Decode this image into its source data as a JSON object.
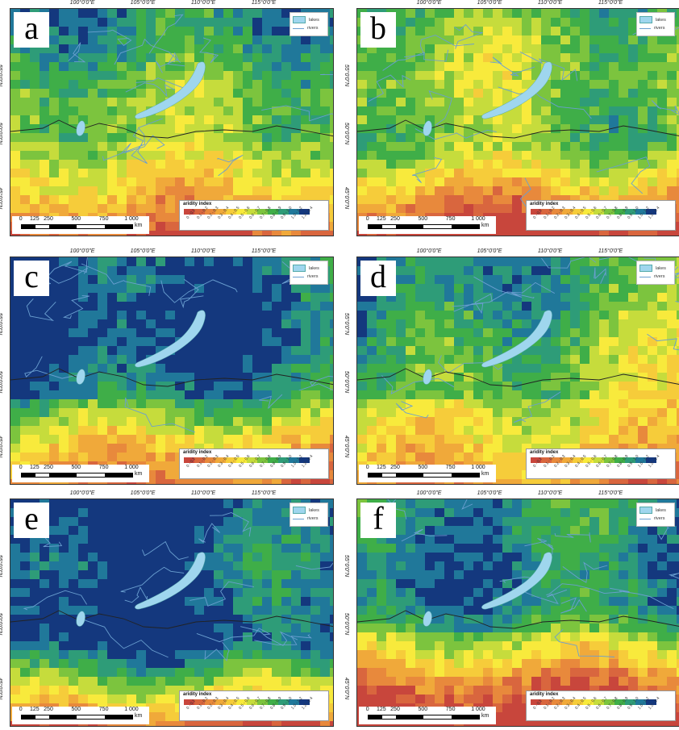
{
  "panels": [
    {
      "letter": "a",
      "legend_max": "1.2 - 1.4"
    },
    {
      "letter": "b",
      "legend_max": "1.2 - 1.4"
    },
    {
      "letter": "c",
      "legend_max": "1.2 - 1.4"
    },
    {
      "letter": "d",
      "legend_max": "1.2 - 1.4"
    },
    {
      "letter": "e",
      "legend_max": "1.2 - 1.4"
    },
    {
      "letter": "f",
      "legend_max": "1.2 - 1.4"
    }
  ],
  "longitude_ticks": [
    "100°0'0\"E",
    "105°0'0\"E",
    "110°0'0\"E",
    "115°0'0\"E"
  ],
  "latitude_ticks": [
    "55°0'0\"N",
    "50°0'0\"N",
    "45°0'0\"N"
  ],
  "map_legend": {
    "lakes": "lakes",
    "rivers": "rivers"
  },
  "aridity_legend": {
    "title": "aridity index",
    "classes": [
      "0 - 0.1",
      "0.1 - 0.2",
      "0.2 - 0.3",
      "0.3 - 0.4",
      "0.4 - 0.5",
      "0.5 - 0.6",
      "0.6 - 0.7",
      "0.7 - 0.8",
      "0.8 - 0.9",
      "0.9 - 1.0",
      "1.0 - 1.2",
      "1.2 - 1.4"
    ],
    "colors": [
      "#c8463c",
      "#d9663e",
      "#e8893c",
      "#f0a93a",
      "#f6cc3a",
      "#f8ea3c",
      "#c6dc3c",
      "#7cc43e",
      "#3fae48",
      "#2e9c78",
      "#20789a",
      "#14387e"
    ]
  },
  "scale_bar": {
    "labels": [
      "0",
      "125",
      "250",
      "500",
      "750",
      "1 000"
    ],
    "unit": "km"
  },
  "colors": {
    "lake": "#9fd6ee",
    "river": "#6a9fd0",
    "border": "#222222"
  }
}
